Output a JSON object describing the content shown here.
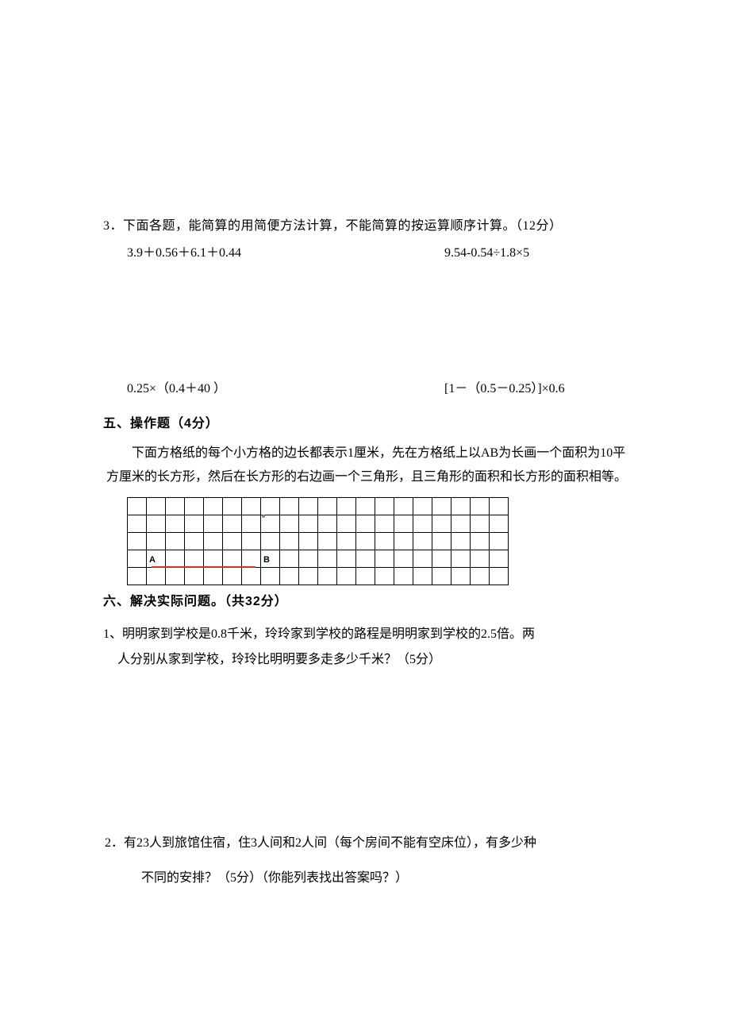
{
  "q3": {
    "stem": "3．下面各题，能简算的用简便方法计算，不能简算的按运算顺序计算。（12分）",
    "expr1a": "3.9＋0.56＋6.1＋0.44",
    "expr1b": "9.54-0.54÷1.8×5",
    "expr2a": "0.25×（0.4＋40 ）",
    "expr2b": "[1－（0.5－0.25）]×0.6"
  },
  "sec5": {
    "title": "五、操作题（4分）",
    "para": "下面方格纸的每个小方格的边长都表示1厘米，先在方格纸上以AB为长画一个面积为10平方厘米的长方形，然后在长方形的右边画一个三角形，且三角形的面积和长方形的面积相等。",
    "label_a": "A",
    "label_b": "B"
  },
  "sec6": {
    "title": "六、解决实际问题。（共32分）",
    "q1": "1、明明家到学校是0.8千米，玲玲家到学校的路程是明明家到学校的2.5倍。两",
    "q1sub": "人分别从家到学校，玲玲比明明要多走多少千米？（5分）",
    "q2": "2．有23人到旅馆住宿，住3人间和2人间（每个房间不能有空床位），有多少种",
    "q2sub": "不同的安排？（5分）（你能列表找出答案吗？）"
  },
  "grid": {
    "rows": 5,
    "cols": 20
  }
}
